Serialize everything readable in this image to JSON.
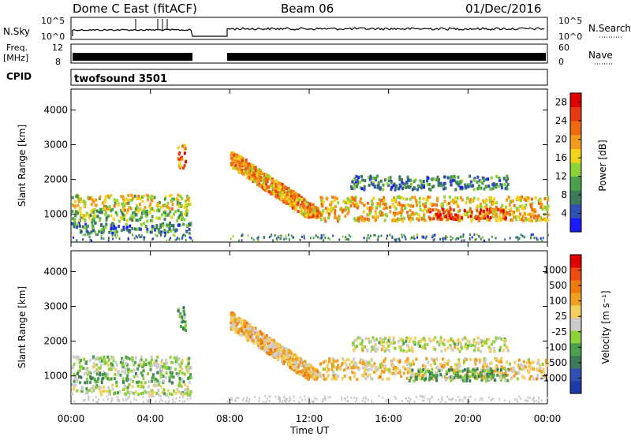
{
  "header": {
    "radar": "Dome C East (fitACF)",
    "beam": "Beam 06",
    "date": "01/Dec/2016"
  },
  "panels": {
    "nsky": {
      "label": "N.Sky",
      "right_label": "N.Search",
      "left_ticks": [
        "10^5",
        "10^0"
      ],
      "right_ticks": [
        "10^5",
        "10^0"
      ]
    },
    "freq": {
      "label_line1": "Freq.",
      "label_line2": "[MHz]",
      "right_label": "Nave",
      "left_ticks": [
        "12",
        "8"
      ],
      "right_ticks": [
        "60",
        "0"
      ]
    },
    "cpid": {
      "label": "CPID",
      "value": "twofsound 3501"
    }
  },
  "x_axis": {
    "label": "Time UT",
    "ticks": [
      "00:00",
      "04:00",
      "08:00",
      "12:00",
      "16:00",
      "20:00",
      "00:00"
    ]
  },
  "colors": {
    "power": [
      "#1a1aff",
      "#2f4fb5",
      "#3d7a5a",
      "#4aa04a",
      "#8fd13a",
      "#f2d21a",
      "#f29a1a",
      "#ef6a10",
      "#e83a10",
      "#e00000"
    ],
    "velocity": [
      "#e00000",
      "#ef4a10",
      "#f07a10",
      "#f0a020",
      "#f2d060",
      "#cccccc",
      "#8fd13a",
      "#4aa04a",
      "#3d7a5a",
      "#2f4fb5",
      "#1f3aa8"
    ]
  },
  "chart_data": [
    {
      "type": "heatmap",
      "title": "Power",
      "xlabel": "Time UT",
      "ylabel": "Slant Range [km]",
      "xlim": [
        "00:00",
        "24:00"
      ],
      "ylim": [
        200,
        4600
      ],
      "yticks": [
        1000,
        2000,
        3000,
        4000
      ],
      "colorbar": {
        "label": "Power [dB]",
        "ticks": [
          "4",
          "8",
          "12",
          "16",
          "20",
          "24",
          "28"
        ],
        "range": [
          0,
          30
        ]
      },
      "data_gap": [
        "06:05",
        "07:50"
      ],
      "echo_bands": [
        {
          "t_start": "00:00",
          "t_end": "06:00",
          "range_km": [
            1100,
            1550
          ],
          "power_db": 16
        },
        {
          "t_start": "00:00",
          "t_end": "06:00",
          "range_km": [
            800,
            1100
          ],
          "power_db": 12
        },
        {
          "t_start": "00:00",
          "t_end": "06:00",
          "range_km": [
            450,
            750
          ],
          "power_db": 8
        },
        {
          "t_start": "05:20",
          "t_end": "05:45",
          "range_km": [
            2300,
            3000
          ],
          "power_db": 22
        },
        {
          "t_start": "08:00",
          "t_end": "12:30",
          "range_km": [
            900,
            2800
          ],
          "power_db": 20
        },
        {
          "t_start": "12:30",
          "t_end": "24:00",
          "range_km": [
            800,
            1500
          ],
          "power_db": 18
        },
        {
          "t_start": "18:00",
          "t_end": "22:00",
          "range_km": [
            850,
            1150
          ],
          "power_db": 26
        },
        {
          "t_start": "14:00",
          "t_end": "22:00",
          "range_km": [
            1700,
            2100
          ],
          "power_db": 8
        }
      ]
    },
    {
      "type": "heatmap",
      "title": "Velocity",
      "xlabel": "Time UT",
      "ylabel": "Slant Range [km]",
      "xlim": [
        "00:00",
        "24:00"
      ],
      "ylim": [
        200,
        4600
      ],
      "yticks": [
        1000,
        2000,
        3000,
        4000
      ],
      "colorbar": {
        "label": "Velocity [m s⁻¹]",
        "ticks": [
          "1000",
          "500",
          "100",
          "25",
          "-25",
          "-100",
          "-500",
          "-1000"
        ],
        "range": [
          -1200,
          1200
        ]
      },
      "data_gap": [
        "06:05",
        "07:50"
      ],
      "echo_bands": [
        {
          "t_start": "00:00",
          "t_end": "06:00",
          "range_km": [
            1100,
            1550
          ],
          "velocity_ms": -150
        },
        {
          "t_start": "00:00",
          "t_end": "06:00",
          "range_km": [
            800,
            1100
          ],
          "velocity_ms": -300
        },
        {
          "t_start": "00:00",
          "t_end": "06:00",
          "range_km": [
            450,
            750
          ],
          "velocity_ms": -60
        },
        {
          "t_start": "05:20",
          "t_end": "05:45",
          "range_km": [
            2300,
            3000
          ],
          "velocity_ms": -400
        },
        {
          "t_start": "08:00",
          "t_end": "12:30",
          "range_km": [
            900,
            2800
          ],
          "velocity_ms": 300
        },
        {
          "t_start": "12:30",
          "t_end": "24:00",
          "range_km": [
            900,
            1500
          ],
          "velocity_ms": 200
        },
        {
          "t_start": "17:00",
          "t_end": "22:00",
          "range_km": [
            850,
            1200
          ],
          "velocity_ms": -400
        },
        {
          "t_start": "14:00",
          "t_end": "22:00",
          "range_km": [
            1700,
            2100
          ],
          "velocity_ms": 0
        }
      ]
    }
  ]
}
